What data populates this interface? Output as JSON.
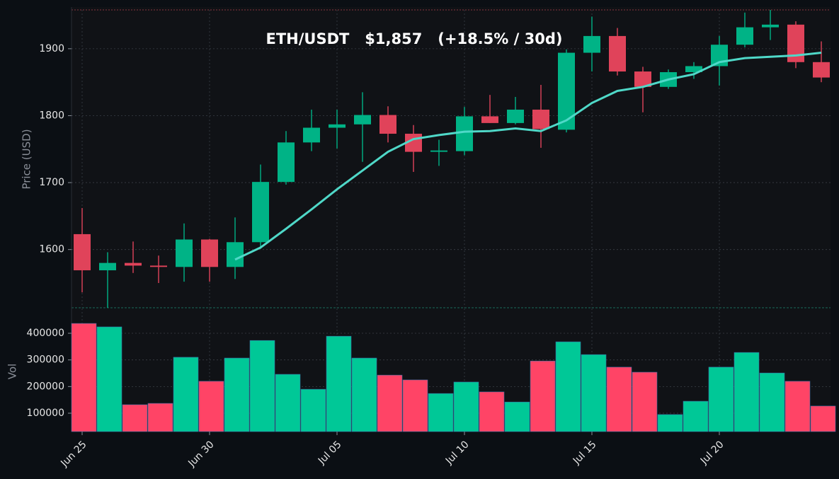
{
  "chart_data": [
    {
      "type": "candlestick",
      "title": "ETH/USDT   $1,857   (+18.5% / 30d)",
      "y_label": "Price (USD)",
      "categories": [
        "Jun 25",
        null,
        null,
        null,
        null,
        "Jun 30",
        null,
        null,
        null,
        null,
        "Jul 05",
        null,
        null,
        null,
        null,
        "Jul 10",
        null,
        null,
        null,
        null,
        "Jul 15",
        null,
        null,
        null,
        null,
        "Jul 20",
        null,
        null,
        null,
        null
      ],
      "open": [
        1623,
        1569,
        1580,
        1576,
        1574,
        1615,
        1574,
        1611,
        1701,
        1760,
        1782,
        1787,
        1801,
        1773,
        1746,
        1747,
        1799,
        1789,
        1809,
        1779,
        1894,
        1919,
        1866,
        1843,
        1865,
        1874,
        1906,
        1932,
        1936,
        1880
      ],
      "high": [
        1662,
        1596,
        1612,
        1591,
        1639,
        1616,
        1648,
        1727,
        1777,
        1809,
        1809,
        1835,
        1814,
        1786,
        1764,
        1813,
        1831,
        1828,
        1846,
        1899,
        1948,
        1931,
        1873,
        1869,
        1880,
        1919,
        1954,
        1958,
        1941,
        1911
      ],
      "low": [
        1536,
        1513,
        1565,
        1550,
        1552,
        1552,
        1556,
        1601,
        1697,
        1747,
        1751,
        1731,
        1760,
        1716,
        1725,
        1741,
        1789,
        1787,
        1752,
        1775,
        1866,
        1860,
        1805,
        1840,
        1855,
        1845,
        1902,
        1913,
        1871,
        1850
      ],
      "close": [
        1569,
        1580,
        1576,
        1574,
        1615,
        1574,
        1611,
        1701,
        1760,
        1782,
        1787,
        1801,
        1773,
        1746,
        1748,
        1799,
        1789,
        1809,
        1780,
        1894,
        1919,
        1866,
        1843,
        1865,
        1874,
        1906,
        1932,
        1936,
        1880,
        1857
      ],
      "line": {
        "color": "#4fd8c8",
        "values": [
          null,
          null,
          null,
          null,
          null,
          null,
          1585,
          1603,
          1631,
          1660,
          1690,
          1718,
          1746,
          1765,
          1771,
          1776,
          1777,
          1781,
          1777,
          1793,
          1819,
          1837,
          1843,
          1854,
          1862,
          1880,
          1886,
          1888,
          1890,
          1894
        ]
      },
      "up_color": "#00b386",
      "down_color": "#e0435a",
      "ylim": [
        1513,
        1958
      ],
      "yticks": [
        1600,
        1700,
        1800,
        1900
      ],
      "grid": true
    },
    {
      "type": "bar",
      "y_label": "Vol",
      "values": [
        437000,
        424000,
        132000,
        137000,
        310000,
        220000,
        307000,
        373000,
        246000,
        190000,
        389000,
        307000,
        243000,
        225000,
        174000,
        217000,
        180000,
        142000,
        296000,
        368000,
        320000,
        273000,
        254000,
        95000,
        145000,
        273000,
        328000,
        251000,
        220000,
        127000
      ],
      "up_color": "#00c897",
      "down_color": "#ff4466",
      "ylim": [
        31000,
        493000
      ],
      "yticks": [
        100000,
        200000,
        300000,
        400000
      ],
      "grid": true
    }
  ]
}
